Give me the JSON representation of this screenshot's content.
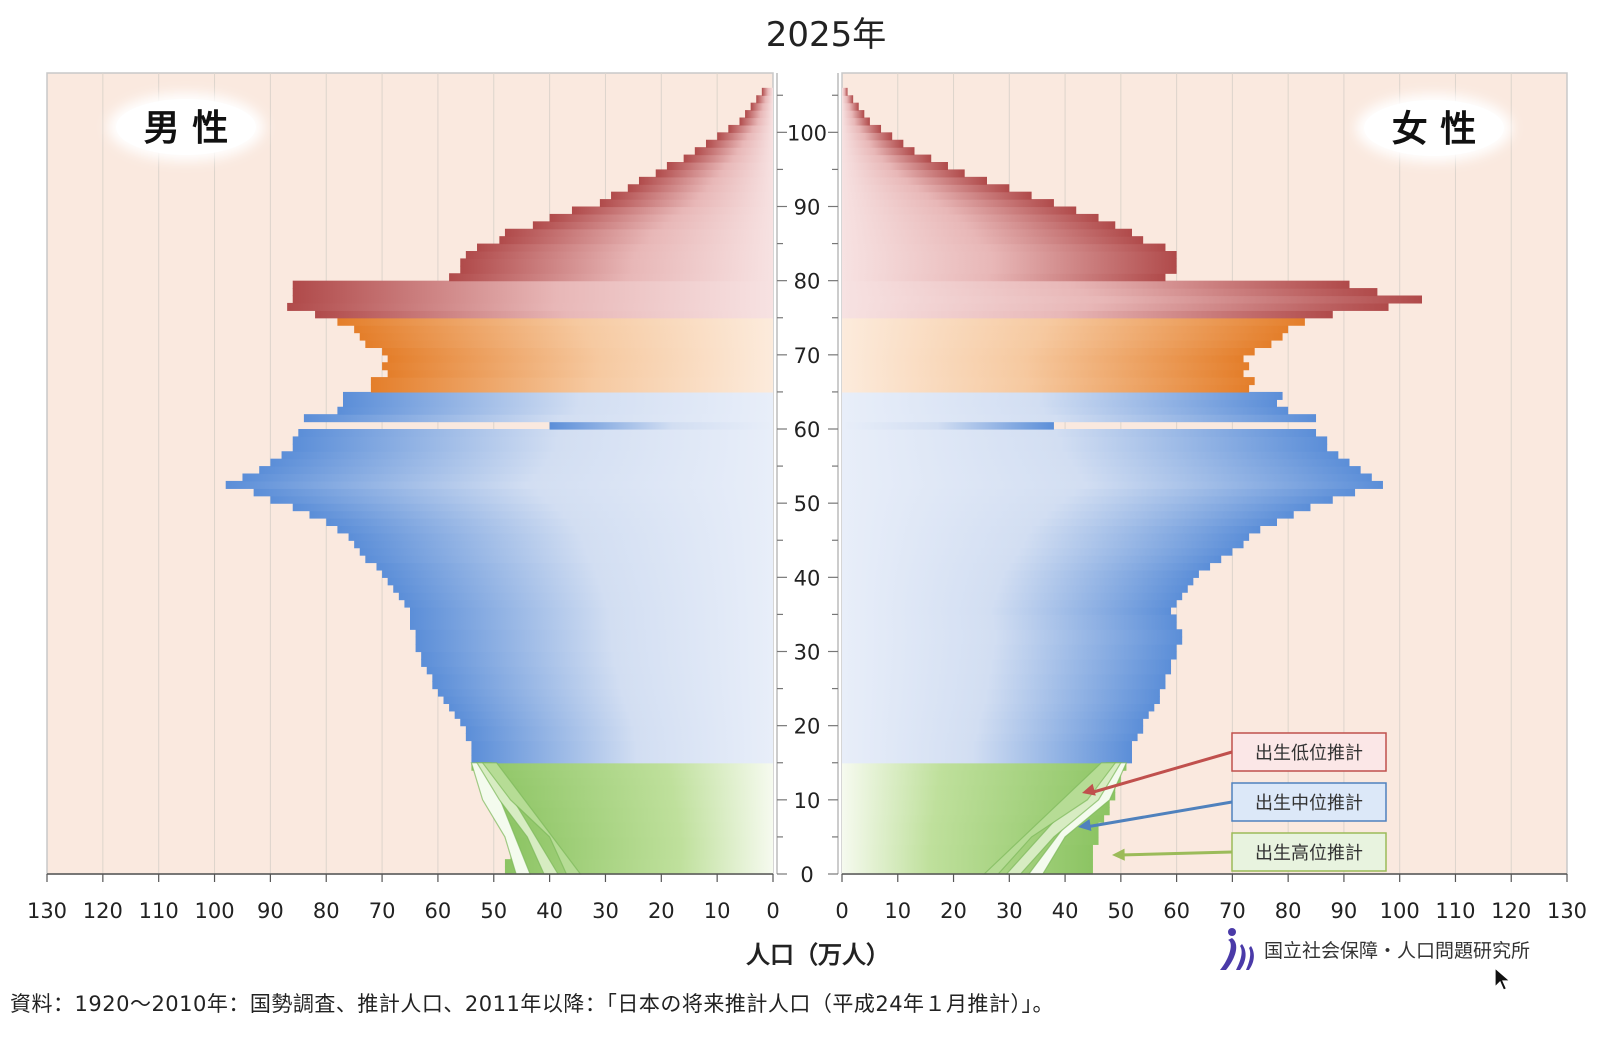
{
  "chart_data": {
    "type": "bar",
    "title": "2025年",
    "male_label": "男 性",
    "female_label": "女 性",
    "xlabel": "人口（万人）",
    "x_ticks_left": [
      "130",
      "120",
      "110",
      "100",
      "90",
      "80",
      "70",
      "60",
      "50",
      "40",
      "30",
      "20",
      "10",
      "0"
    ],
    "x_ticks_right": [
      "0",
      "10",
      "20",
      "30",
      "40",
      "50",
      "60",
      "70",
      "80",
      "90",
      "100",
      "110",
      "120",
      "130"
    ],
    "age_ticks": [
      "0",
      "10",
      "20",
      "30",
      "40",
      "50",
      "60",
      "70",
      "80",
      "90",
      "100"
    ],
    "xlim": [
      0,
      130
    ],
    "ylim": [
      0,
      105
    ],
    "legend": [
      {
        "label": "出生低位推計",
        "color": "#c0504d"
      },
      {
        "label": "出生中位推計",
        "color": "#4f81bd"
      },
      {
        "label": "出生高位推計",
        "color": "#9bbb59"
      }
    ],
    "bands": [
      {
        "from": 0,
        "to": 14,
        "color": "#8cc463"
      },
      {
        "from": 15,
        "to": 64,
        "color": "#5b8ed8"
      },
      {
        "from": 65,
        "to": 74,
        "color": "#e47e2a"
      },
      {
        "from": 75,
        "to": 105,
        "color": "#b04a4a"
      }
    ],
    "series": [
      {
        "name": "男性",
        "values": [
          48,
          48,
          47,
          47,
          47,
          48,
          48,
          49,
          49,
          50,
          51,
          51,
          52,
          53,
          54,
          54,
          54,
          54,
          55,
          55,
          56,
          57,
          58,
          59,
          60,
          61,
          61,
          62,
          63,
          63,
          64,
          64,
          64,
          65,
          65,
          65,
          66,
          67,
          68,
          69,
          70,
          71,
          73,
          74,
          75,
          76,
          78,
          80,
          83,
          86,
          90,
          93,
          98,
          95,
          92,
          90,
          88,
          86,
          86,
          85,
          40,
          84,
          78,
          77,
          77,
          72,
          72,
          69,
          70,
          69,
          70,
          73,
          74,
          75,
          78,
          82,
          87,
          86,
          86,
          86,
          58,
          56,
          56,
          55,
          53,
          49,
          48,
          43,
          40,
          36,
          31,
          29,
          26,
          24,
          21,
          19,
          16,
          14,
          12,
          10,
          8,
          6,
          5,
          4,
          3,
          2
        ]
      },
      {
        "name": "女性",
        "values": [
          45,
          45,
          45,
          45,
          46,
          46,
          46,
          47,
          48,
          48,
          49,
          49,
          50,
          50,
          51,
          52,
          52,
          52,
          53,
          54,
          54,
          55,
          56,
          57,
          57,
          58,
          58,
          59,
          59,
          60,
          60,
          61,
          61,
          60,
          60,
          59,
          60,
          61,
          62,
          63,
          64,
          66,
          68,
          70,
          72,
          73,
          75,
          78,
          81,
          84,
          88,
          92,
          97,
          95,
          93,
          91,
          89,
          87,
          87,
          85,
          38,
          85,
          80,
          78,
          79,
          73,
          74,
          72,
          73,
          72,
          74,
          77,
          79,
          80,
          83,
          88,
          98,
          104,
          96,
          91,
          58,
          60,
          60,
          60,
          58,
          54,
          52,
          49,
          46,
          42,
          38,
          34,
          30,
          26,
          22,
          19,
          16,
          13,
          11,
          9,
          7,
          5,
          4,
          3,
          2,
          1
        ]
      }
    ]
  },
  "source_text": "資料：1920～2010年：国勢調査、推計人口、2011年以降：「日本の将来推計人口（平成24年１月推計）」。",
  "org_name": "国立社会保障・人口問題研究所"
}
